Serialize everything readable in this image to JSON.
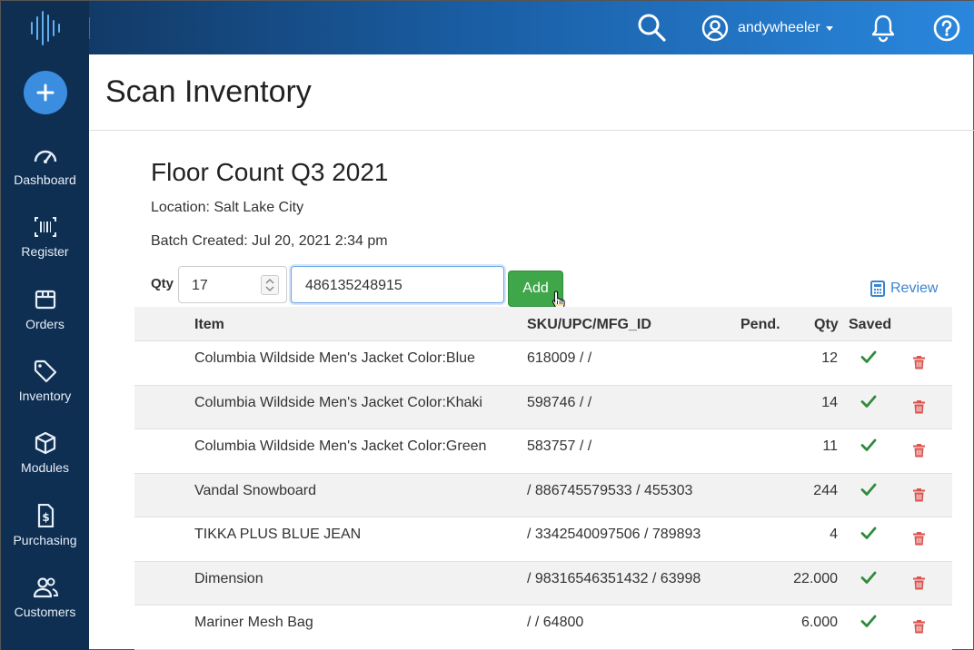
{
  "page": {
    "title": "Scan Inventory"
  },
  "topbar": {
    "username": "andywheeler"
  },
  "sidebar": {
    "items": [
      {
        "label": "Dashboard"
      },
      {
        "label": "Register"
      },
      {
        "label": "Orders"
      },
      {
        "label": "Inventory"
      },
      {
        "label": "Modules"
      },
      {
        "label": "Purchasing"
      },
      {
        "label": "Customers"
      }
    ]
  },
  "batch": {
    "title": "Floor Count Q3 2021",
    "location": "Location: Salt Lake City",
    "created": "Batch Created: Jul 20, 2021 2:34 pm"
  },
  "scan_form": {
    "qty_label": "Qty",
    "qty_value": "17",
    "code_value": "486135248915",
    "add_label": "Add",
    "review_label": "Review"
  },
  "table": {
    "headers": {
      "item": "Item",
      "sku": "SKU/UPC/MFG_ID",
      "pend": "Pend.",
      "qty": "Qty",
      "saved": "Saved"
    },
    "rows": [
      {
        "item": "Columbia Wildside Men's Jacket Color:Blue",
        "sku": "618009 / /",
        "qty": "12"
      },
      {
        "item": "Columbia Wildside Men's Jacket Color:Khaki",
        "sku": "598746 / /",
        "qty": "14"
      },
      {
        "item": "Columbia Wildside Men's Jacket Color:Green",
        "sku": "583757 / /",
        "qty": "11"
      },
      {
        "item": "Vandal Snowboard",
        "sku": "/ 886745579533 / 455303",
        "qty": "244"
      },
      {
        "item": "TIKKA PLUS BLUE JEAN",
        "sku": "/ 3342540097506 / 789893",
        "qty": "4"
      },
      {
        "item": "Dimension",
        "sku": "/ 98316546351432 / 63998",
        "qty": "22.000"
      },
      {
        "item": "Mariner Mesh Bag",
        "sku": "/ / 64800",
        "qty": "6.000"
      }
    ]
  },
  "colors": {
    "sidebar": "#0f2f52",
    "accent": "#3b8de0",
    "add_button": "#3fa64a",
    "check": "#2e8b3d",
    "trash": "#d9534f"
  }
}
